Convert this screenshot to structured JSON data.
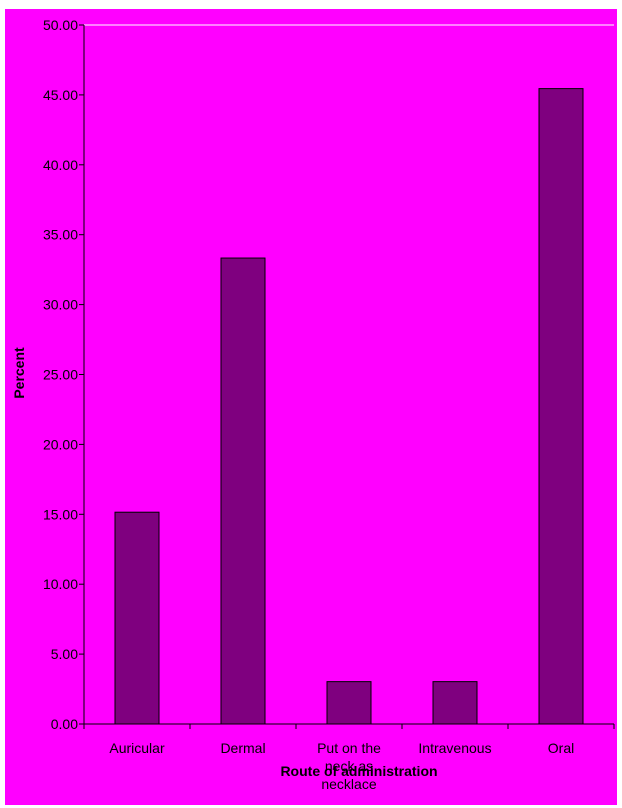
{
  "colors": {
    "background": "#ff00ff",
    "bar": "#7f007f",
    "bar_border": "#000000",
    "gridline": "#ffffff",
    "axis": "#000000"
  },
  "chart_data": {
    "type": "bar",
    "categories": [
      "Auricular",
      "Dermal",
      "Put on the neck as necklace",
      "Intravenous",
      "Oral"
    ],
    "category_lines": [
      [
        "Auricular"
      ],
      [
        "Dermal"
      ],
      [
        "Put on the",
        "neck as",
        "necklace"
      ],
      [
        "Intravenous"
      ],
      [
        "Oral"
      ]
    ],
    "series": [
      {
        "values": [
          15.15,
          33.33,
          3.03,
          3.03,
          45.45
        ]
      }
    ],
    "xlabel": "Route of administration",
    "ylabel": "Percent",
    "ylim": [
      0,
      50
    ],
    "yticks": [
      "0.00",
      "5.00",
      "10.00",
      "15.00",
      "20.00",
      "25.00",
      "30.00",
      "35.00",
      "40.00",
      "45.00",
      "50.00"
    ],
    "grid": true,
    "legend": "none"
  }
}
